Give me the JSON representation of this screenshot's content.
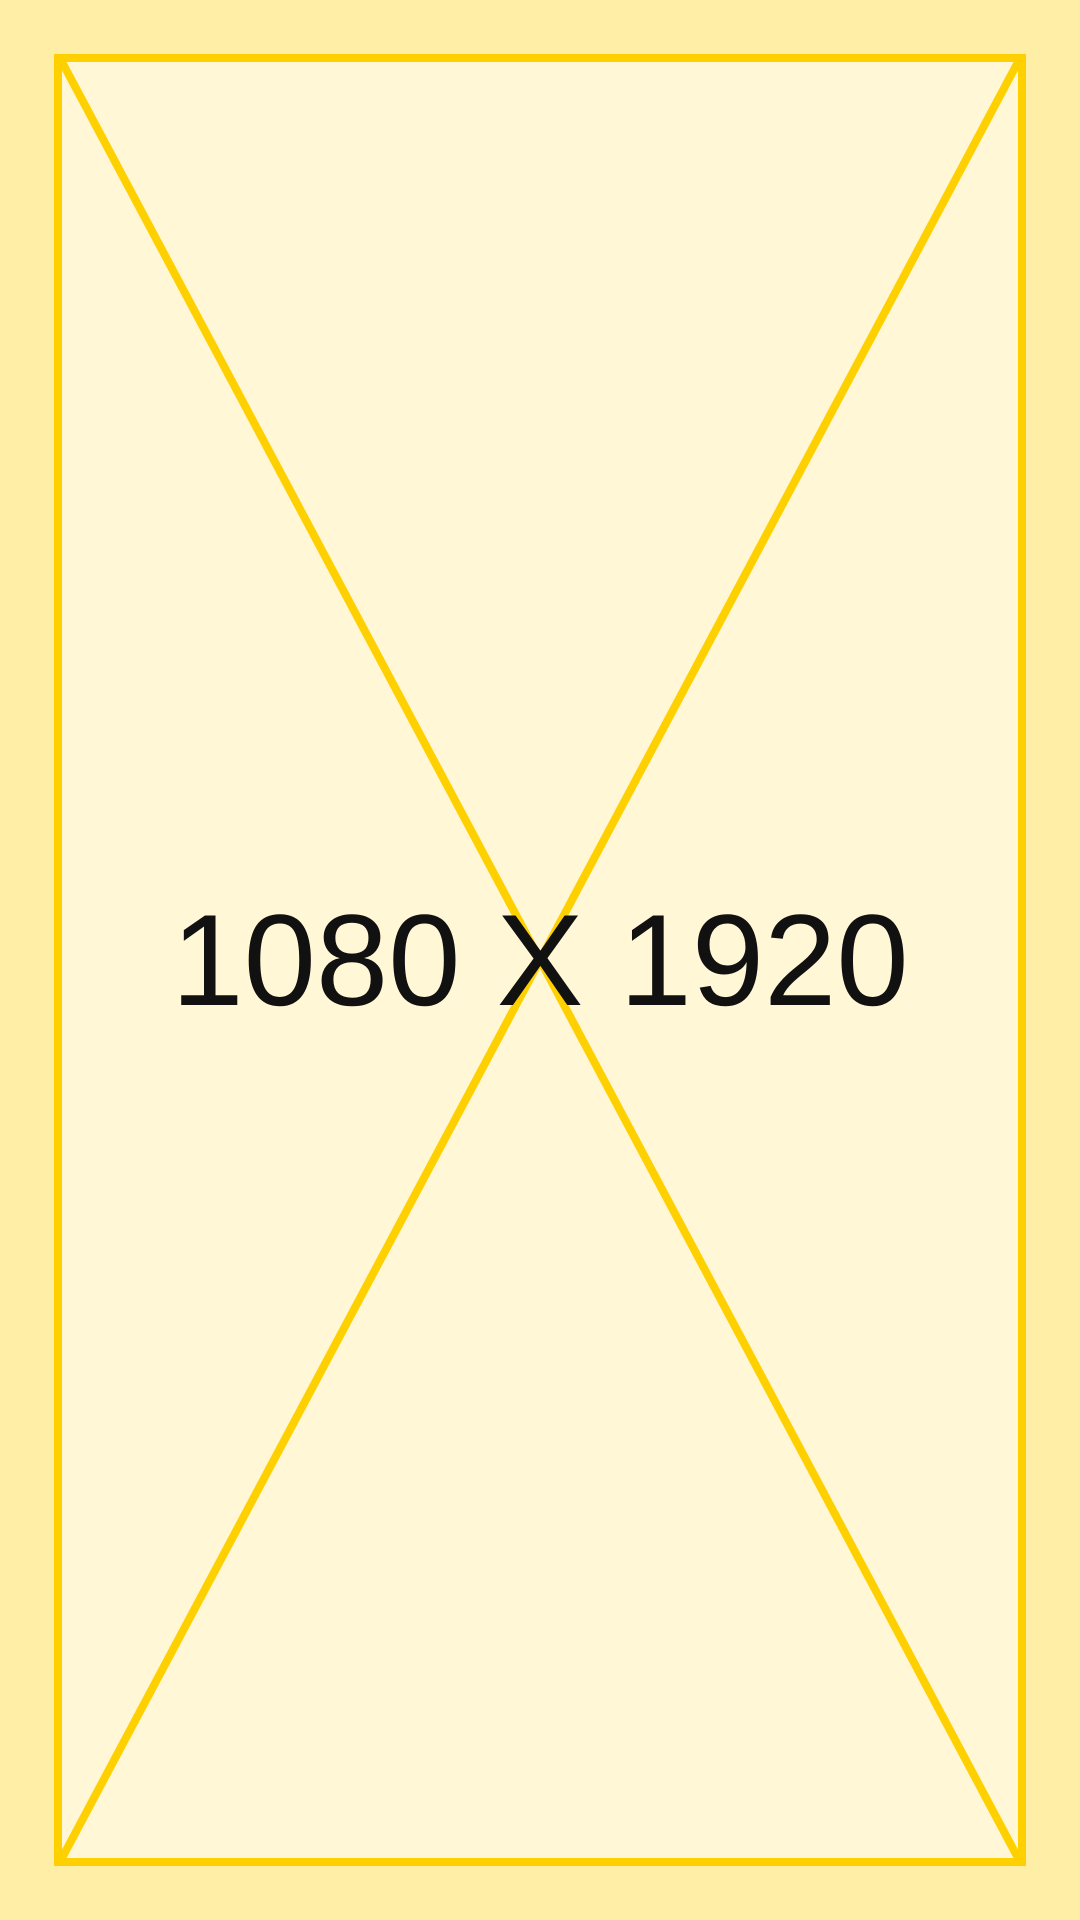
{
  "placeholder": {
    "label": "1080 X 1920",
    "colors": {
      "outer_background": "#FFEFA6",
      "inner_background": "#FFF7D5",
      "stroke": "#FFD000",
      "text": "#111111"
    }
  }
}
